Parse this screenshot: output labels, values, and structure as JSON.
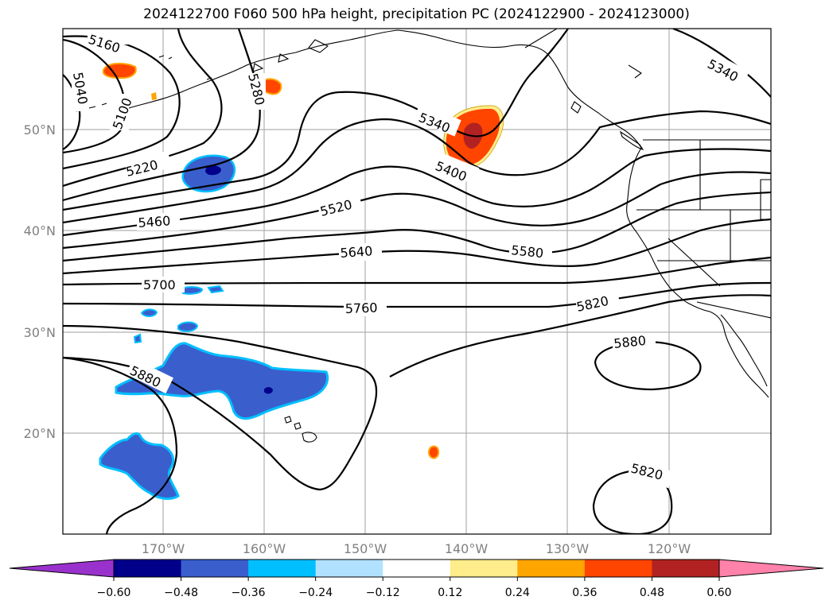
{
  "title": "2024122700 F060 500 hPa height, precipitation PC (2024122900 - 2024123000)",
  "latitude_labels": [
    "50°N",
    "40°N",
    "30°N",
    "20°N"
  ],
  "longitude_labels": [
    "170°W",
    "160°W",
    "150°W",
    "140°W",
    "130°W",
    "120°W"
  ],
  "contour_labels": [
    "5160",
    "5040",
    "5100",
    "5280",
    "5220",
    "5340",
    "5400",
    "5520",
    "5460",
    "5640",
    "5580",
    "5700",
    "5760",
    "5820",
    "5880",
    "5880",
    "5880",
    "5820",
    "5340"
  ],
  "colorbar": {
    "ticks": [
      "−0.60",
      "−0.48",
      "−0.36",
      "−0.24",
      "−0.12",
      "0.12",
      "0.24",
      "0.36",
      "0.48",
      "0.60"
    ],
    "colors": [
      "#9932cc",
      "#00008b",
      "#3a5fcd",
      "#00bfff",
      "#b0e2ff",
      "#ffffff",
      "#ffec8b",
      "#ffa500",
      "#ff4500",
      "#b22222",
      "#ff82ab"
    ]
  },
  "shading_colors": {
    "neg_light": "#b0e2ff",
    "neg_mid": "#00bfff",
    "neg_main": "#3a5fcd",
    "neg_dark": "#00008b",
    "pos_light": "#ffec8b",
    "pos_mid": "#ffa500",
    "pos_main": "#ff4500",
    "pos_dark": "#b22222"
  }
}
